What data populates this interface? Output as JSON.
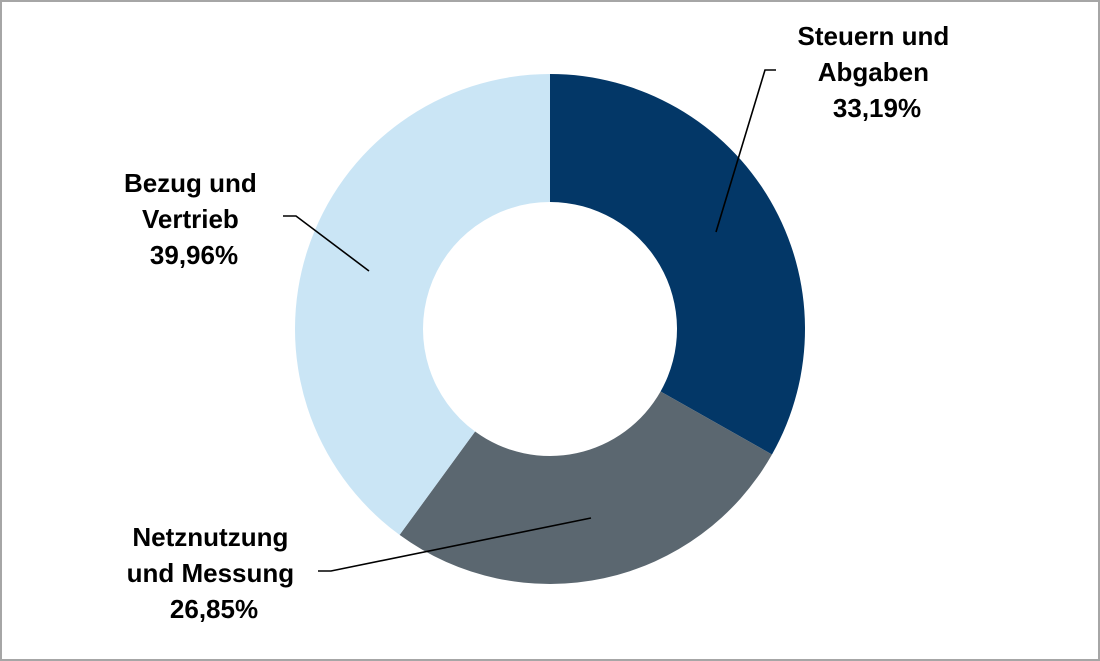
{
  "chart_data": {
    "type": "pie",
    "variant": "donut",
    "title": "",
    "slices": [
      {
        "label_lines": [
          "Steuern und",
          "Abgaben"
        ],
        "value_label": "33,19%",
        "value": 33.19,
        "color": "#033767"
      },
      {
        "label_lines": [
          "Netznutzung",
          "und Messung"
        ],
        "value_label": "26,85%",
        "value": 26.85,
        "color": "#5b6770"
      },
      {
        "label_lines": [
          "Bezug und",
          "Vertrieb"
        ],
        "value_label": "39,96%",
        "value": 39.96,
        "color": "#cae5f5"
      }
    ],
    "start_angle": "12 o'clock",
    "direction": "clockwise",
    "legend": "none",
    "data_labels": "outside with leader lines"
  },
  "colors": {
    "border": "#a6a6a6",
    "leader": "#000000",
    "background": "#ffffff"
  }
}
